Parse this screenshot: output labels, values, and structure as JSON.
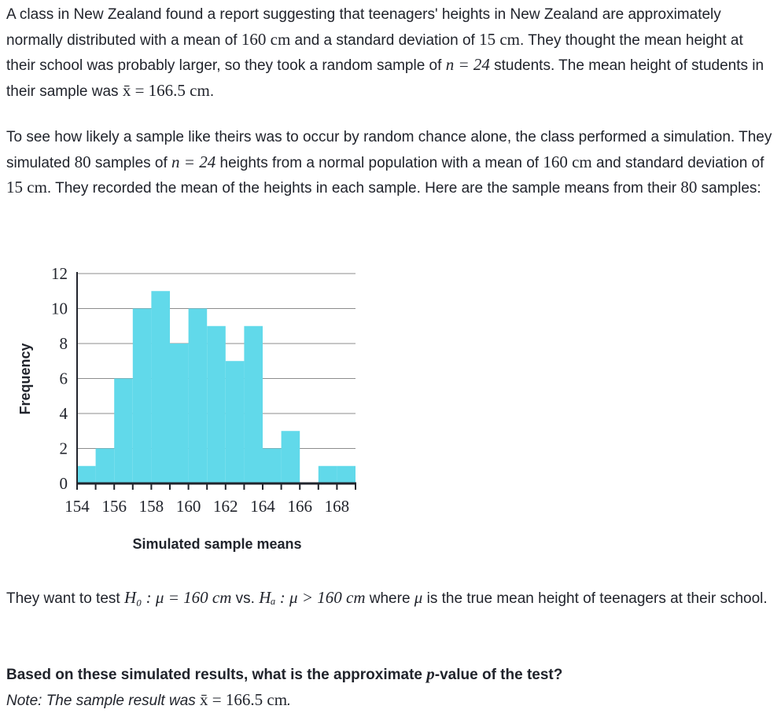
{
  "para1": {
    "t1": "A class in New Zealand found a report suggesting that teenagers' heights in New Zealand are approximately normally distributed with a mean of ",
    "m1": "160 cm",
    "t2": " and a standard deviation of ",
    "m2": "15 cm",
    "t3": ". They thought the mean height at their school was probably larger, so they took a random sample of ",
    "m3": "n = 24",
    "t4": " students. The mean height of students in their sample was ",
    "m4": "x̄ = 166.5 cm",
    "t5": "."
  },
  "para2": {
    "t1": "To see how likely a sample like theirs was to occur by random chance alone, the class performed a simulation. They simulated ",
    "m1": "80",
    "t2": " samples of ",
    "m2": "n = 24",
    "t3": " heights from a normal population with a mean of ",
    "m3": "160 cm",
    "t4": " and standard deviation of ",
    "m4": "15 cm",
    "t5": ". They recorded the mean of the heights in each sample. Here are the sample means from their ",
    "m5": "80",
    "t6": " samples:"
  },
  "para3": {
    "t1": "They want to test ",
    "m1": "H₀ : μ = 160 cm",
    "t2": " vs. ",
    "m2": "Hₐ : μ > 160 cm",
    "t3": " where ",
    "m3": "μ",
    "t4": " is the true mean height of teenagers at their school."
  },
  "question": {
    "t1": "Based on these simulated results, what is the approximate ",
    "m1": "p",
    "t2": "-value of the test?"
  },
  "note": {
    "t1": "Note: The sample result was ",
    "m1": "x̄ = 166.5 cm",
    "t2": "."
  },
  "chart_data": {
    "type": "bar",
    "xlabel": "Simulated sample means",
    "ylabel": "Frequency",
    "xlim": [
      154,
      169
    ],
    "ylim": [
      0,
      12
    ],
    "x_ticks": [
      154,
      156,
      158,
      160,
      162,
      164,
      166,
      168
    ],
    "y_ticks": [
      0,
      2,
      4,
      6,
      8,
      10,
      12
    ],
    "grid": true,
    "bin_width": 1,
    "bins": [
      154,
      155,
      156,
      157,
      158,
      159,
      160,
      161,
      162,
      163,
      164,
      165,
      166,
      167,
      168
    ],
    "values": [
      1,
      2,
      6,
      10,
      11,
      8,
      10,
      9,
      7,
      9,
      2,
      3,
      0,
      1,
      1
    ],
    "color": "#61d9ea"
  }
}
